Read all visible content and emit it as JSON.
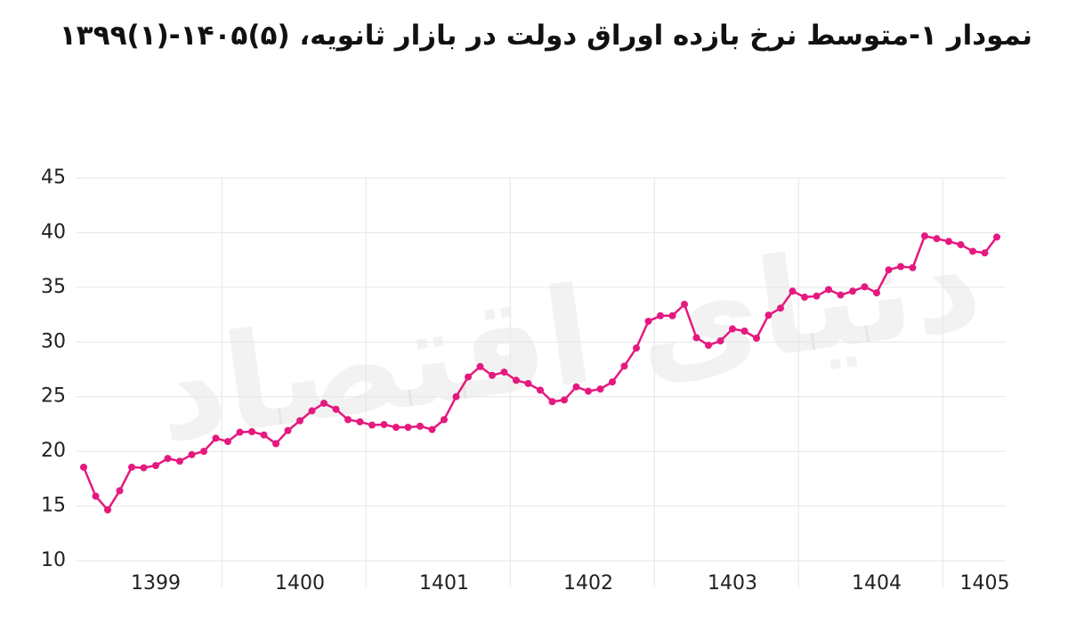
{
  "chart_data": {
    "type": "line",
    "title": "نمودار ۱-متوسط نرخ بازده اوراق دولت در بازار ثانویه، (۵)۱۴۰۵-(۱)۱۳۹۹",
    "watermark": "دنیای اقتصاد",
    "categories": [
      null,
      null,
      null,
      null,
      null,
      null,
      "1399",
      null,
      null,
      null,
      null,
      null,
      null,
      null,
      null,
      null,
      null,
      null,
      "1400",
      null,
      null,
      null,
      null,
      null,
      null,
      null,
      null,
      null,
      null,
      null,
      "1401",
      null,
      null,
      null,
      null,
      null,
      null,
      null,
      null,
      null,
      null,
      null,
      "1402",
      null,
      null,
      null,
      null,
      null,
      null,
      null,
      null,
      null,
      null,
      null,
      "1403",
      null,
      null,
      null,
      null,
      null,
      null,
      null,
      null,
      null,
      null,
      null,
      "1404",
      null,
      null,
      null,
      null,
      null,
      null,
      null,
      null,
      "1405",
      null
    ],
    "series": [
      {
        "color": "#e5197f",
        "values": [
          18.55,
          15.9,
          14.65,
          16.4,
          18.55,
          18.5,
          18.7,
          19.35,
          19.1,
          19.7,
          20.0,
          21.2,
          20.9,
          21.75,
          21.8,
          21.5,
          20.7,
          21.9,
          22.8,
          23.7,
          24.4,
          23.85,
          22.9,
          22.7,
          22.4,
          22.45,
          22.2,
          22.2,
          22.3,
          22.0,
          22.9,
          25.0,
          26.8,
          27.75,
          26.95,
          27.25,
          26.5,
          26.2,
          25.6,
          24.55,
          24.7,
          25.9,
          25.5,
          25.7,
          26.35,
          27.8,
          29.45,
          31.9,
          32.4,
          32.4,
          33.45,
          30.4,
          29.7,
          30.1,
          31.2,
          31.0,
          30.35,
          32.45,
          33.1,
          34.65,
          34.1,
          34.2,
          34.8,
          34.3,
          34.65,
          35.05,
          34.5,
          36.6,
          36.9,
          36.8,
          39.7,
          39.45,
          39.2,
          38.9,
          38.3,
          38.15,
          39.6
        ]
      }
    ],
    "ylim": [
      10,
      45
    ],
    "yticks": [
      10,
      15,
      20,
      25,
      30,
      35,
      40,
      45
    ],
    "grid": true
  }
}
